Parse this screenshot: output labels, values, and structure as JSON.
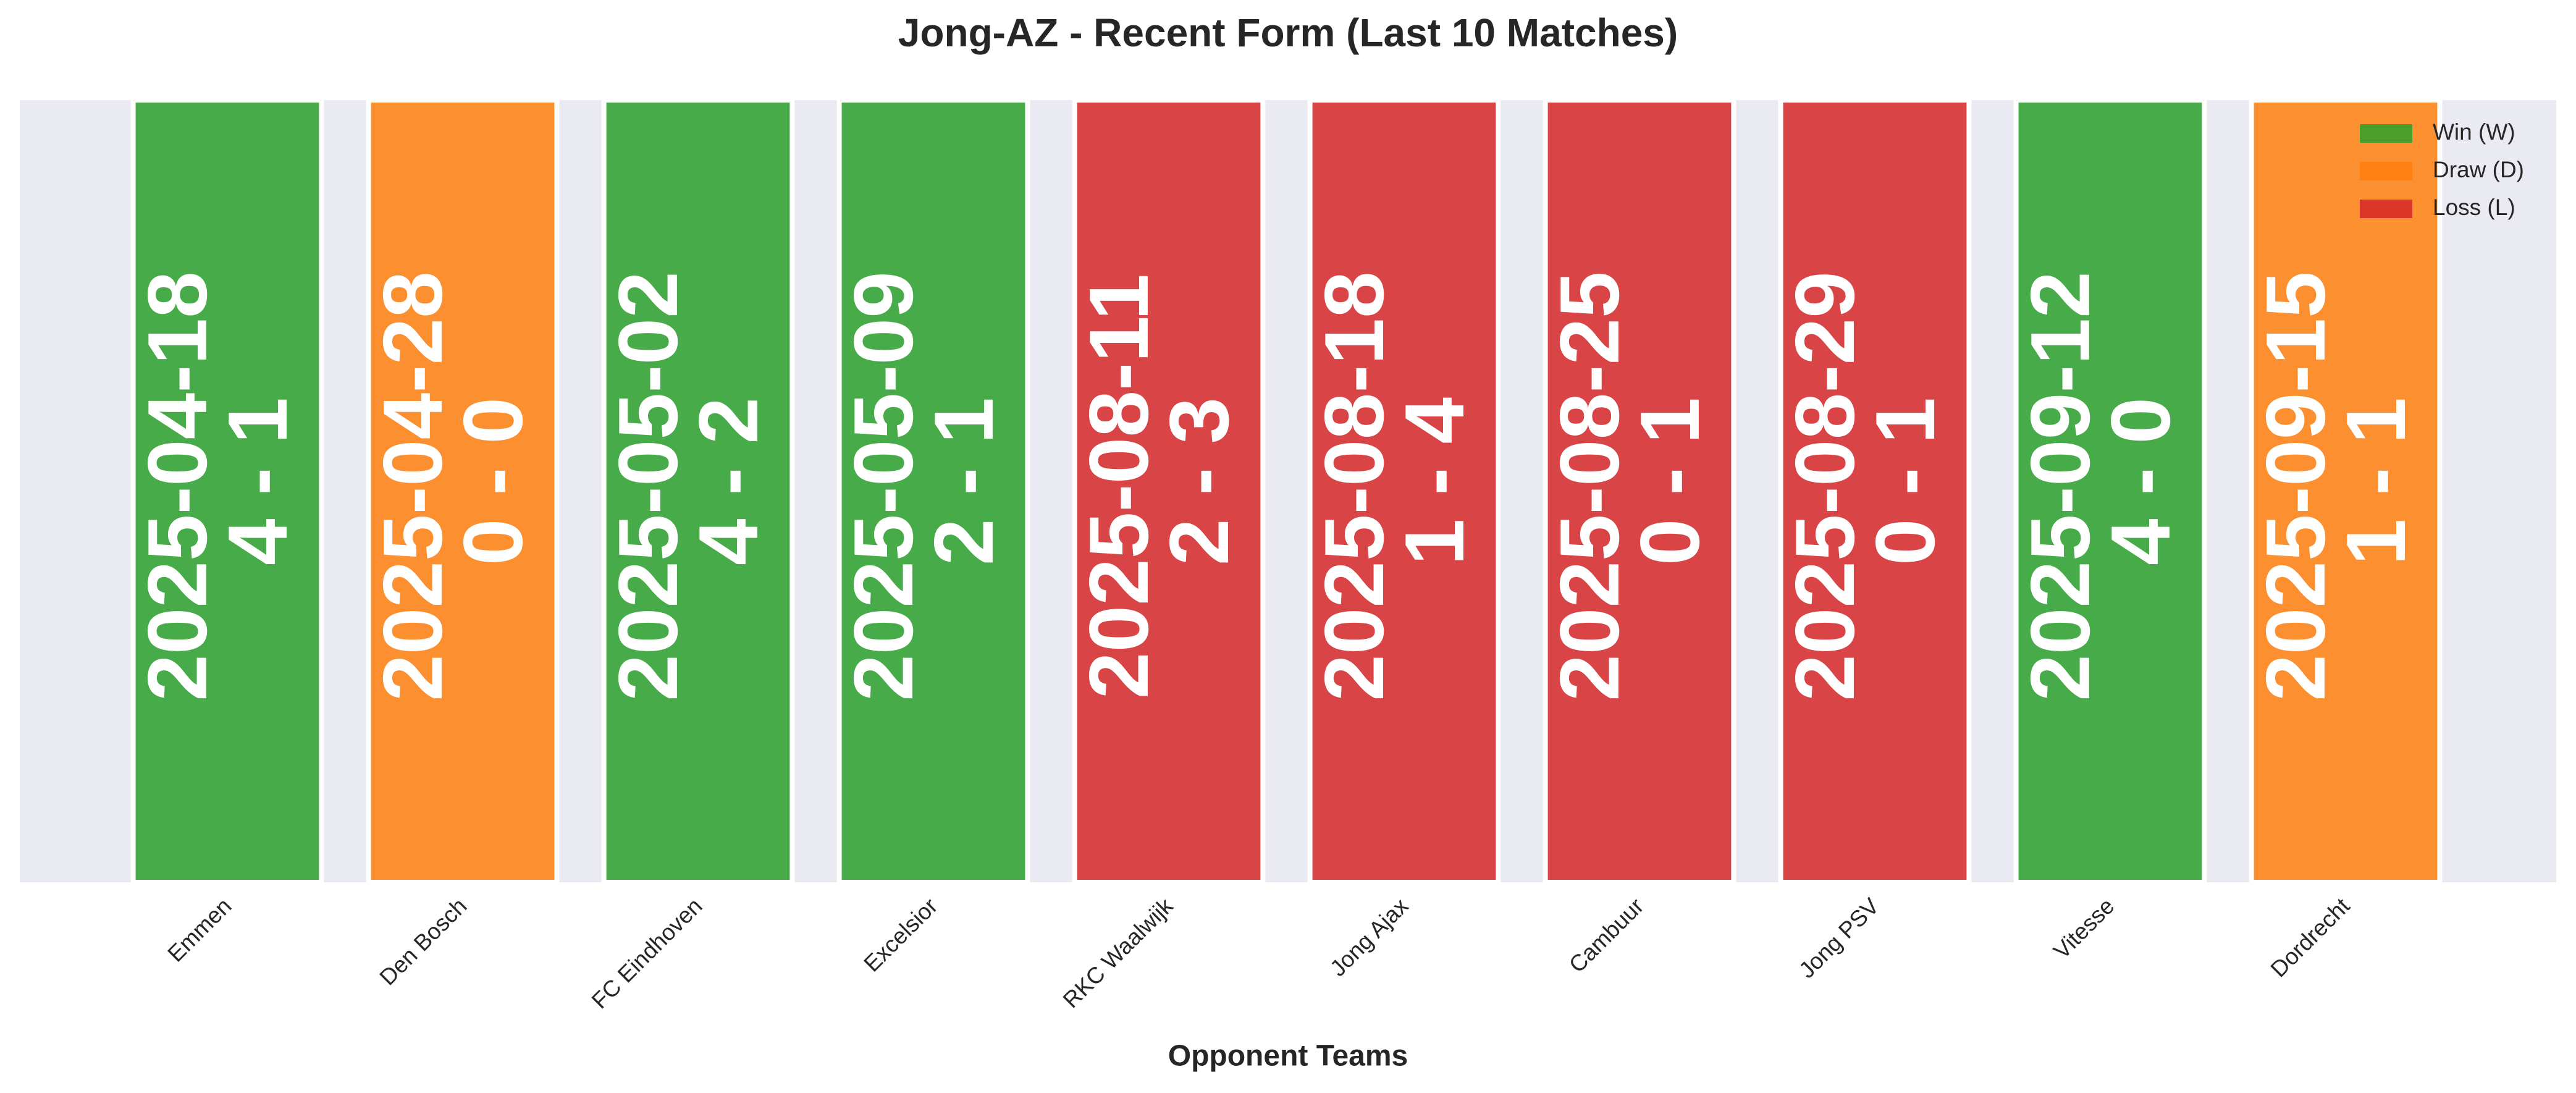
{
  "chart_data": {
    "type": "bar",
    "title": "Jong-AZ - Recent Form (Last 10 Matches)",
    "x_label": "Opponent Teams",
    "categories": [
      "Emmen",
      "Den Bosch",
      "FC Eindhoven",
      "Excelsior",
      "RKC Waalwijk",
      "Jong Ajax",
      "Cambuur",
      "Jong PSV",
      "Vitesse",
      "Dordrecht"
    ],
    "dates": [
      "2025-04-18",
      "2025-04-28",
      "2025-05-02",
      "2025-05-09",
      "2025-08-11",
      "2025-08-18",
      "2025-08-25",
      "2025-08-29",
      "2025-09-12",
      "2025-09-15"
    ],
    "scores": [
      "4 - 1",
      "0 - 0",
      "4 - 2",
      "2 - 1",
      "2 - 3",
      "1 - 4",
      "0 - 1",
      "0 - 1",
      "4 - 0",
      "1 - 1"
    ],
    "values": [
      1,
      1,
      1,
      1,
      1,
      1,
      1,
      1,
      1,
      1
    ],
    "ylim": [
      0,
      1
    ],
    "colors": [
      "#2ca02c",
      "#ff7f0e",
      "#2ca02c",
      "#2ca02c",
      "#d62728",
      "#d62728",
      "#d62728",
      "#d62728",
      "#2ca02c",
      "#ff7f0e"
    ],
    "legend": [
      {
        "name": "Win (W)",
        "color": "#2ca02c"
      },
      {
        "name": "Draw (D)",
        "color": "#ff7f0e"
      },
      {
        "name": "Loss (L)",
        "color": "#d62728"
      }
    ],
    "legend_position": "upper right"
  }
}
